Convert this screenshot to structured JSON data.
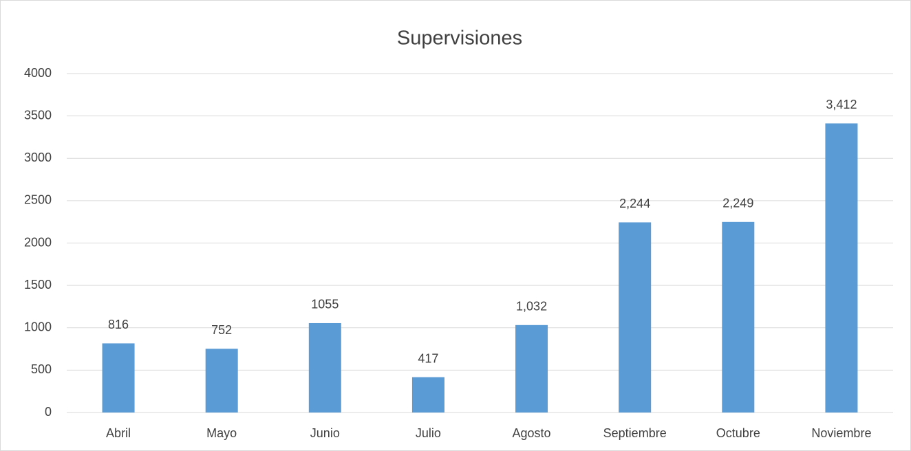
{
  "chart_data": {
    "type": "bar",
    "title": "Supervisiones",
    "categories": [
      "Abril",
      "Mayo",
      "Junio",
      "Julio",
      "Agosto",
      "Septiembre",
      "Octubre",
      "Noviembre"
    ],
    "values": [
      816,
      752,
      1055,
      417,
      1032,
      2244,
      2249,
      3412
    ],
    "value_labels": [
      "816",
      "752",
      "1055",
      "417",
      "1,032",
      "2,244",
      "2,249",
      "3,412"
    ],
    "color": "#5b9bd5",
    "ylim": [
      0,
      4000
    ],
    "yticks": [
      0,
      500,
      1000,
      1500,
      2000,
      2500,
      3000,
      3500,
      4000
    ],
    "grid": true
  }
}
